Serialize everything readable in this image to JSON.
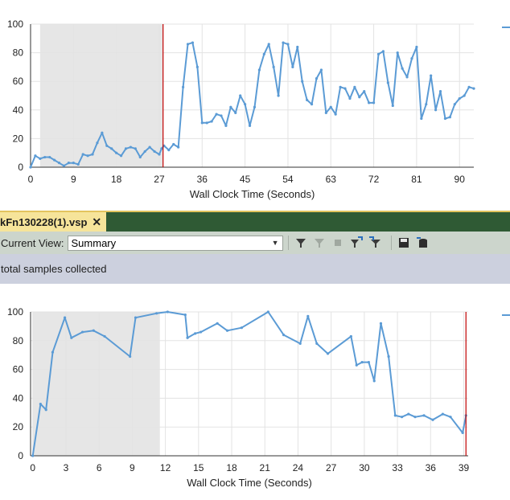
{
  "document_tab": {
    "title": "kFn130228(1).vsp",
    "close_glyph": "✕"
  },
  "toolbar": {
    "current_view_label": "Current View:",
    "current_view_value": "Summary",
    "icons": [
      "filter-icon",
      "filter-disabled-icon",
      "stop-icon",
      "filter-down-icon",
      "filter-clear-icon",
      "save-icon",
      "export-icon"
    ]
  },
  "info_bar": {
    "text": "total samples collected"
  },
  "colors": {
    "series": "#5b9bd5",
    "marker": "#c00000",
    "selection": "#e6e6e6",
    "grid": "#e3e3e3"
  },
  "chart_data": [
    {
      "type": "line",
      "xlabel": "Wall Clock Time (Seconds)",
      "ylabel": "",
      "xlim": [
        0,
        93
      ],
      "ylim": [
        0,
        100
      ],
      "xticks": [
        0,
        9,
        18,
        27,
        36,
        45,
        54,
        63,
        72,
        81,
        90
      ],
      "yticks": [
        0,
        20,
        40,
        60,
        80,
        100
      ],
      "selected_range": [
        2,
        27.8
      ],
      "marker_x": 27.8,
      "series": [
        {
          "x": [
            0,
            1,
            2,
            3,
            4,
            5,
            6,
            7,
            8,
            9,
            10,
            11,
            12,
            13,
            14,
            15,
            16,
            17,
            18,
            19,
            20,
            21,
            22,
            23,
            24,
            25,
            26,
            27,
            27.5,
            28,
            29,
            30,
            31,
            32,
            33,
            34,
            35,
            36,
            37,
            38,
            39,
            40,
            41,
            42,
            43,
            44,
            45,
            46,
            47,
            48,
            49,
            50,
            51,
            52,
            53,
            54,
            55,
            56,
            57,
            58,
            59,
            60,
            61,
            62,
            63,
            64,
            65,
            66,
            67,
            68,
            69,
            70,
            71,
            72,
            73,
            74,
            75,
            76,
            77,
            78,
            79,
            80,
            81,
            82,
            83,
            84,
            85,
            86,
            87,
            88,
            89,
            90,
            91,
            92,
            93
          ],
          "y": [
            0,
            8,
            6,
            7,
            7,
            5,
            3,
            1,
            3,
            3,
            2,
            9,
            8,
            9,
            17,
            24,
            15,
            13,
            10,
            8,
            13,
            14,
            13,
            7,
            11,
            14,
            11,
            9,
            13,
            15,
            12,
            16,
            14,
            56,
            86,
            87,
            70,
            31,
            31,
            32,
            37,
            36,
            29,
            42,
            38,
            50,
            44,
            29,
            42,
            68,
            79,
            86,
            70,
            50,
            87,
            86,
            70,
            84,
            60,
            47,
            44,
            62,
            68,
            38,
            42,
            37,
            56,
            55,
            48,
            56,
            49,
            53,
            45,
            45,
            79,
            81,
            59,
            43,
            80,
            69,
            63,
            76,
            84,
            34,
            44,
            64,
            40,
            53,
            34,
            35,
            44,
            48,
            50,
            56,
            55
          ]
        }
      ]
    },
    {
      "type": "line",
      "xlabel": "Wall Clock Time (Seconds)",
      "ylabel": "",
      "xlim": [
        -0.2,
        39.4
      ],
      "ylim": [
        0,
        100
      ],
      "xticks": [
        0,
        3,
        6,
        9,
        12,
        15,
        18,
        21,
        24,
        27,
        30,
        33,
        36,
        39
      ],
      "yticks": [
        0,
        20,
        40,
        60,
        80,
        100
      ],
      "selected_range": [
        0,
        11.5
      ],
      "marker_x": 39.2,
      "series": [
        {
          "x": [
            0,
            0.7,
            1.2,
            1.8,
            2.9,
            3.5,
            4.5,
            5.5,
            6.5,
            8.8,
            9.3,
            11.2,
            12.2,
            13.8,
            14,
            14.7,
            15.2,
            16.7,
            17.6,
            18.9,
            21.3,
            22.7,
            24.2,
            24.9,
            25.7,
            26.7,
            28.8,
            29.3,
            29.8,
            30.4,
            30.9,
            31.5,
            32.2,
            32.8,
            33.4,
            34,
            34.6,
            35.4,
            36.2,
            37.1,
            37.8,
            38.9,
            39.2
          ],
          "y": [
            0,
            36,
            32,
            72,
            96,
            82,
            86,
            87,
            83,
            69,
            96,
            99,
            100,
            98,
            82,
            85,
            86,
            92,
            87,
            89,
            100,
            84,
            78,
            97,
            78,
            71,
            83,
            63,
            65,
            65,
            52,
            92,
            69,
            28,
            27,
            29,
            27,
            28,
            25,
            29,
            27,
            16,
            28
          ]
        }
      ]
    }
  ]
}
